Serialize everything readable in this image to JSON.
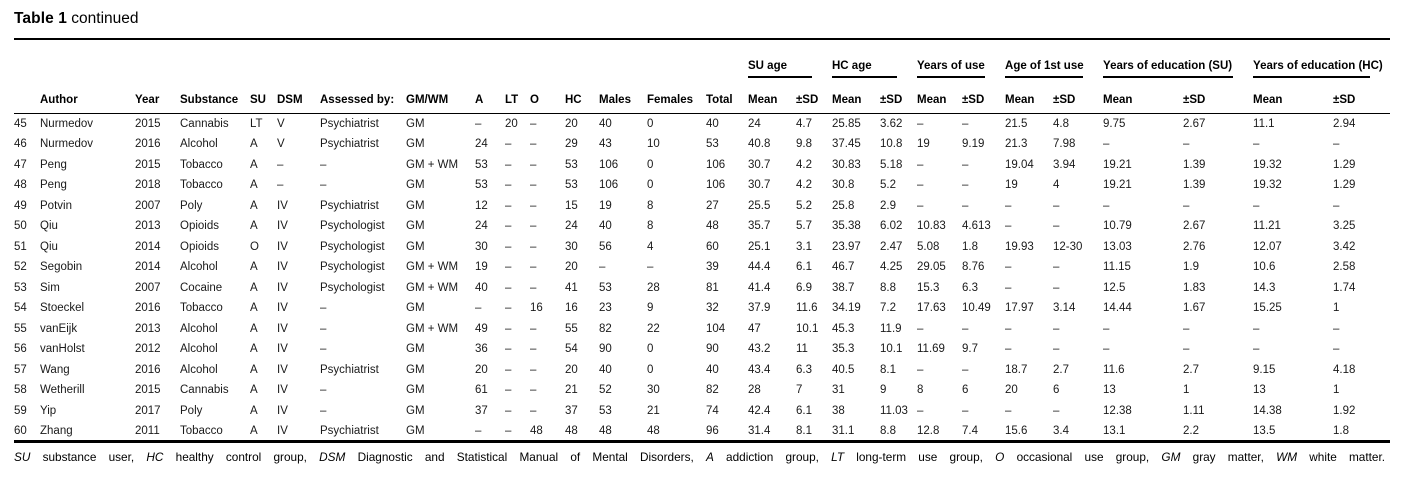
{
  "colors": {
    "ink": "#000000",
    "background": "#ffffff"
  },
  "title": {
    "label": "Table 1",
    "continued": "continued"
  },
  "table": {
    "group_span_start": 15,
    "group_headers": [
      "SU age",
      "HC age",
      "Years of use",
      "Age of 1st use",
      "Years of education (SU)",
      "Years of education (HC)"
    ],
    "columns": [
      "",
      "Author",
      "Year",
      "Substance",
      "SU",
      "DSM",
      "Assessed by:",
      "GM/WM",
      "A",
      "LT",
      "O",
      "HC",
      "Males",
      "Females",
      "Total",
      "Mean",
      "±SD",
      "Mean",
      "±SD",
      "Mean",
      "±SD",
      "Mean",
      "±SD",
      "Mean",
      "±SD",
      "Mean",
      "±SD"
    ],
    "rows": [
      [
        "45",
        "Nurmedov",
        "2015",
        "Cannabis",
        "LT",
        "V",
        "Psychiatrist",
        "GM",
        "–",
        "20",
        "–",
        "20",
        "40",
        "0",
        "40",
        "24",
        "4.7",
        "25.85",
        "3.62",
        "–",
        "–",
        "21.5",
        "4.8",
        "9.75",
        "2.67",
        "11.1",
        "2.94"
      ],
      [
        "46",
        "Nurmedov",
        "2016",
        "Alcohol",
        "A",
        "V",
        "Psychiatrist",
        "GM",
        "24",
        "–",
        "–",
        "29",
        "43",
        "10",
        "53",
        "40.8",
        "9.8",
        "37.45",
        "10.8",
        "19",
        "9.19",
        "21.3",
        "7.98",
        "–",
        "–",
        "–",
        "–"
      ],
      [
        "47",
        "Peng",
        "2015",
        "Tobacco",
        "A",
        "–",
        "–",
        "GM + WM",
        "53",
        "–",
        "–",
        "53",
        "106",
        "0",
        "106",
        "30.7",
        "4.2",
        "30.83",
        "5.18",
        "–",
        "–",
        "19.04",
        "3.94",
        "19.21",
        "1.39",
        "19.32",
        "1.29"
      ],
      [
        "48",
        "Peng",
        "2018",
        "Tobacco",
        "A",
        "–",
        "–",
        "GM",
        "53",
        "–",
        "–",
        "53",
        "106",
        "0",
        "106",
        "30.7",
        "4.2",
        "30.8",
        "5.2",
        "–",
        "–",
        "19",
        "4",
        "19.21",
        "1.39",
        "19.32",
        "1.29"
      ],
      [
        "49",
        "Potvin",
        "2007",
        "Poly",
        "A",
        "IV",
        "Psychiatrist",
        "GM",
        "12",
        "–",
        "–",
        "15",
        "19",
        "8",
        "27",
        "25.5",
        "5.2",
        "25.8",
        "2.9",
        "–",
        "–",
        "–",
        "–",
        "–",
        "–",
        "–",
        "–"
      ],
      [
        "50",
        "Qiu",
        "2013",
        "Opioids",
        "A",
        "IV",
        "Psychologist",
        "GM",
        "24",
        "–",
        "–",
        "24",
        "40",
        "8",
        "48",
        "35.7",
        "5.7",
        "35.38",
        "6.02",
        "10.83",
        "4.613",
        "–",
        "–",
        "10.79",
        "2.67",
        "11.21",
        "3.25"
      ],
      [
        "51",
        "Qiu",
        "2014",
        "Opioids",
        "O",
        "IV",
        "Psychologist",
        "GM",
        "30",
        "–",
        "–",
        "30",
        "56",
        "4",
        "60",
        "25.1",
        "3.1",
        "23.97",
        "2.47",
        "5.08",
        "1.8",
        "19.93",
        "12-30",
        "13.03",
        "2.76",
        "12.07",
        "3.42"
      ],
      [
        "52",
        "Segobin",
        "2014",
        "Alcohol",
        "A",
        "IV",
        "Psychologist",
        "GM + WM",
        "19",
        "–",
        "–",
        "20",
        "–",
        "–",
        "39",
        "44.4",
        "6.1",
        "46.7",
        "4.25",
        "29.05",
        "8.76",
        "–",
        "–",
        "11.15",
        "1.9",
        "10.6",
        "2.58"
      ],
      [
        "53",
        "Sim",
        "2007",
        "Cocaine",
        "A",
        "IV",
        "Psychologist",
        "GM + WM",
        "40",
        "–",
        "–",
        "41",
        "53",
        "28",
        "81",
        "41.4",
        "6.9",
        "38.7",
        "8.8",
        "15.3",
        "6.3",
        "–",
        "–",
        "12.5",
        "1.83",
        "14.3",
        "1.74"
      ],
      [
        "54",
        "Stoeckel",
        "2016",
        "Tobacco",
        "A",
        "IV",
        "–",
        "GM",
        "–",
        "–",
        "16",
        "16",
        "23",
        "9",
        "32",
        "37.9",
        "11.6",
        "34.19",
        "7.2",
        "17.63",
        "10.49",
        "17.97",
        "3.14",
        "14.44",
        "1.67",
        "15.25",
        "1"
      ],
      [
        "55",
        "vanEijk",
        "2013",
        "Alcohol",
        "A",
        "IV",
        "–",
        "GM + WM",
        "49",
        "–",
        "–",
        "55",
        "82",
        "22",
        "104",
        "47",
        "10.1",
        "45.3",
        "11.9",
        "–",
        "–",
        "–",
        "–",
        "–",
        "–",
        "–",
        "–"
      ],
      [
        "56",
        "vanHolst",
        "2012",
        "Alcohol",
        "A",
        "IV",
        "–",
        "GM",
        "36",
        "–",
        "–",
        "54",
        "90",
        "0",
        "90",
        "43.2",
        "11",
        "35.3",
        "10.1",
        "11.69",
        "9.7",
        "–",
        "–",
        "–",
        "–",
        "–",
        "–"
      ],
      [
        "57",
        "Wang",
        "2016",
        "Alcohol",
        "A",
        "IV",
        "Psychiatrist",
        "GM",
        "20",
        "–",
        "–",
        "20",
        "40",
        "0",
        "40",
        "43.4",
        "6.3",
        "40.5",
        "8.1",
        "–",
        "–",
        "18.7",
        "2.7",
        "11.6",
        "2.7",
        "9.15",
        "4.18"
      ],
      [
        "58",
        "Wetherill",
        "2015",
        "Cannabis",
        "A",
        "IV",
        "–",
        "GM",
        "61",
        "–",
        "–",
        "21",
        "52",
        "30",
        "82",
        "28",
        "7",
        "31",
        "9",
        "8",
        "6",
        "20",
        "6",
        "13",
        "1",
        "13",
        "1"
      ],
      [
        "59",
        "Yip",
        "2017",
        "Poly",
        "A",
        "IV",
        "–",
        "GM",
        "37",
        "–",
        "–",
        "37",
        "53",
        "21",
        "74",
        "42.4",
        "6.1",
        "38",
        "11.03",
        "–",
        "–",
        "–",
        "–",
        "12.38",
        "1.11",
        "14.38",
        "1.92"
      ],
      [
        "60",
        "Zhang",
        "2011",
        "Tobacco",
        "A",
        "IV",
        "Psychiatrist",
        "GM",
        "–",
        "–",
        "48",
        "48",
        "48",
        "48",
        "96",
        "31.4",
        "8.1",
        "31.1",
        "8.8",
        "12.8",
        "7.4",
        "15.6",
        "3.4",
        "13.1",
        "2.2",
        "13.5",
        "1.8"
      ]
    ]
  },
  "footnote": [
    {
      "abbr": "SU",
      "desc": "substance user"
    },
    {
      "abbr": "HC",
      "desc": "healthy control group"
    },
    {
      "abbr": "DSM",
      "desc": "Diagnostic and Statistical Manual of Mental Disorders"
    },
    {
      "abbr": "A",
      "desc": "addiction group"
    },
    {
      "abbr": "LT",
      "desc": "long-term use group"
    },
    {
      "abbr": "O",
      "desc": "occasional use group"
    },
    {
      "abbr": "GM",
      "desc": "gray matter"
    },
    {
      "abbr": "WM",
      "desc": "white matter"
    }
  ]
}
